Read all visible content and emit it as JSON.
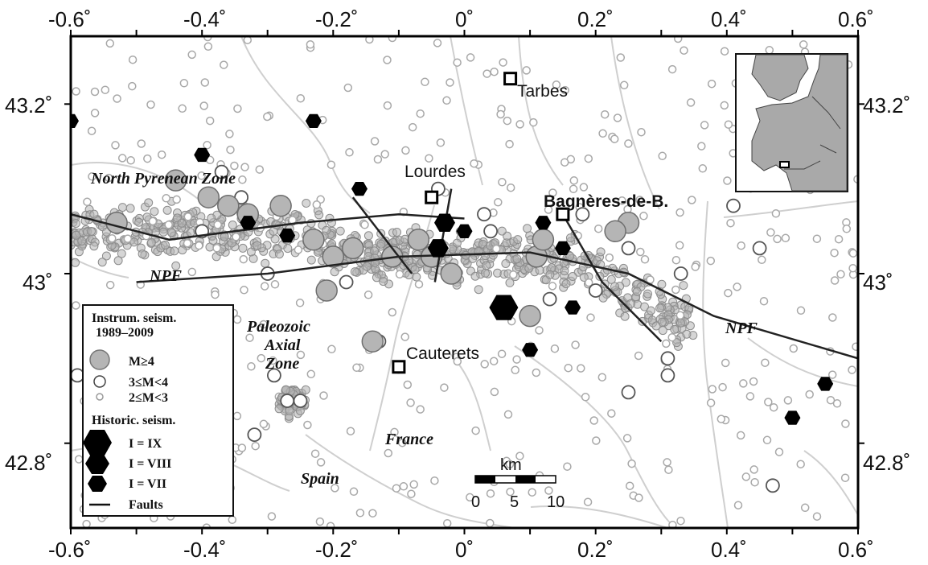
{
  "axes": {
    "lon_ticks": [
      "-0.6˚",
      "-0.4˚",
      "-0.2˚",
      "0˚",
      "0.2˚",
      "0.4˚",
      "0.6˚"
    ],
    "lat_ticks": [
      "43.2˚",
      "43˚",
      "42.8˚"
    ]
  },
  "towns": {
    "tarbes": "Tarbes",
    "lourdes": "Lourdes",
    "bagneres": "Bagnères-de-B.",
    "cauterets": "Cauterets"
  },
  "regions": {
    "north_pyrenean_zone": "North Pyrenean Zone",
    "npf_west": "NPF",
    "npf_east": "NPF",
    "paleozoic_line1": "Paleozoic",
    "paleozoic_line2": "Axial",
    "paleozoic_line3": "Zone",
    "france": "France",
    "spain": "Spain"
  },
  "legend": {
    "title_line1": "Instrum. seism.",
    "title_line2": "1989–2009",
    "m4": "M≥4",
    "m3": "3≤M<4",
    "m2": "2≤M<3",
    "historic_title": "Historic. seism.",
    "i9": "I = IX",
    "i8": "I = VIII",
    "i7": "I = VII",
    "faults": "Faults"
  },
  "scale_bar": {
    "unit": "km",
    "labels": [
      "0",
      "5",
      "10"
    ]
  },
  "colors": {
    "instrumental_fill": "#b5b5b5",
    "instrumental_stroke": "#8c8c8c",
    "historic_fill": "#000000",
    "fault_line": "#222222",
    "road_line": "#cfcfcf",
    "inset_land": "#a9a9a9"
  },
  "map_data": {
    "lon_range": [
      -0.6,
      0.6
    ],
    "lat_range": [
      42.7,
      43.28
    ],
    "towns": [
      {
        "key": "tarbes",
        "lon": 0.07,
        "lat": 43.23
      },
      {
        "key": "lourdes",
        "lon": -0.05,
        "lat": 43.09
      },
      {
        "key": "bagneres",
        "lon": 0.15,
        "lat": 43.07
      },
      {
        "key": "cauterets",
        "lon": -0.1,
        "lat": 42.89
      }
    ],
    "faults": [
      [
        [
          -0.6,
          43.07
        ],
        [
          -0.45,
          43.04
        ],
        [
          -0.25,
          43.06
        ],
        [
          -0.1,
          43.07
        ],
        [
          0.0,
          43.065
        ]
      ],
      [
        [
          -0.5,
          42.99
        ],
        [
          -0.3,
          43.0
        ],
        [
          -0.1,
          43.02
        ],
        [
          0.1,
          43.025
        ],
        [
          0.25,
          43.0
        ],
        [
          0.38,
          42.95
        ],
        [
          0.6,
          42.9
        ]
      ],
      [
        [
          -0.17,
          43.09
        ],
        [
          -0.08,
          43.0
        ]
      ],
      [
        [
          -0.02,
          43.1
        ],
        [
          -0.045,
          42.99
        ]
      ],
      [
        [
          0.15,
          43.07
        ],
        [
          0.21,
          42.99
        ],
        [
          0.3,
          42.92
        ]
      ]
    ],
    "historic": [
      {
        "lon": -0.6,
        "lat": 43.18,
        "i": "VII"
      },
      {
        "lon": -0.23,
        "lat": 43.18,
        "i": "VII"
      },
      {
        "lon": -0.4,
        "lat": 43.14,
        "i": "VII"
      },
      {
        "lon": -0.16,
        "lat": 43.1,
        "i": "VII"
      },
      {
        "lon": -0.33,
        "lat": 43.06,
        "i": "VII"
      },
      {
        "lon": -0.27,
        "lat": 43.045,
        "i": "VII"
      },
      {
        "lon": -0.03,
        "lat": 43.06,
        "i": "VIII"
      },
      {
        "lon": -0.04,
        "lat": 43.03,
        "i": "VIII"
      },
      {
        "lon": 0.0,
        "lat": 43.05,
        "i": "VII"
      },
      {
        "lon": 0.12,
        "lat": 43.06,
        "i": "VII"
      },
      {
        "lon": 0.15,
        "lat": 43.03,
        "i": "VII"
      },
      {
        "lon": 0.06,
        "lat": 42.96,
        "i": "IX"
      },
      {
        "lon": 0.165,
        "lat": 42.96,
        "i": "VII"
      },
      {
        "lon": 0.1,
        "lat": 42.91,
        "i": "VII"
      },
      {
        "lon": 0.55,
        "lat": 42.87,
        "i": "VII"
      },
      {
        "lon": 0.5,
        "lat": 42.83,
        "i": "VII"
      }
    ],
    "large_quakes": [
      [
        -0.53,
        43.06
      ],
      [
        -0.44,
        43.11
      ],
      [
        -0.39,
        43.09
      ],
      [
        -0.36,
        43.08
      ],
      [
        -0.33,
        43.07
      ],
      [
        -0.28,
        43.08
      ],
      [
        -0.23,
        43.04
      ],
      [
        -0.2,
        43.02
      ],
      [
        -0.17,
        43.03
      ],
      [
        -0.21,
        42.98
      ],
      [
        -0.11,
        43.02
      ],
      [
        -0.07,
        43.04
      ],
      [
        -0.05,
        43.02
      ],
      [
        -0.02,
        43.0
      ],
      [
        0.11,
        43.02
      ],
      [
        0.12,
        43.04
      ],
      [
        -0.14,
        42.92
      ],
      [
        0.1,
        42.95
      ],
      [
        0.25,
        43.06
      ],
      [
        0.23,
        43.05
      ]
    ],
    "medium_quakes": [
      [
        -0.59,
        42.88
      ],
      [
        -0.29,
        42.88
      ],
      [
        -0.32,
        42.81
      ],
      [
        -0.27,
        42.85
      ],
      [
        -0.25,
        42.85
      ],
      [
        0.33,
        43.0
      ],
      [
        0.41,
        43.08
      ],
      [
        0.45,
        43.03
      ],
      [
        0.31,
        42.9
      ],
      [
        0.31,
        42.88
      ],
      [
        0.25,
        42.86
      ],
      [
        0.47,
        42.75
      ],
      [
        0.18,
        43.07
      ],
      [
        0.25,
        43.03
      ],
      [
        0.03,
        43.07
      ],
      [
        0.04,
        43.05
      ],
      [
        -0.13,
        42.92
      ],
      [
        0.13,
        42.97
      ],
      [
        0.2,
        42.98
      ],
      [
        -0.3,
        43.0
      ],
      [
        -0.34,
        43.09
      ],
      [
        -0.37,
        43.12
      ],
      [
        -0.4,
        43.05
      ],
      [
        -0.18,
        42.99
      ],
      [
        -0.04,
        43.1
      ]
    ]
  }
}
